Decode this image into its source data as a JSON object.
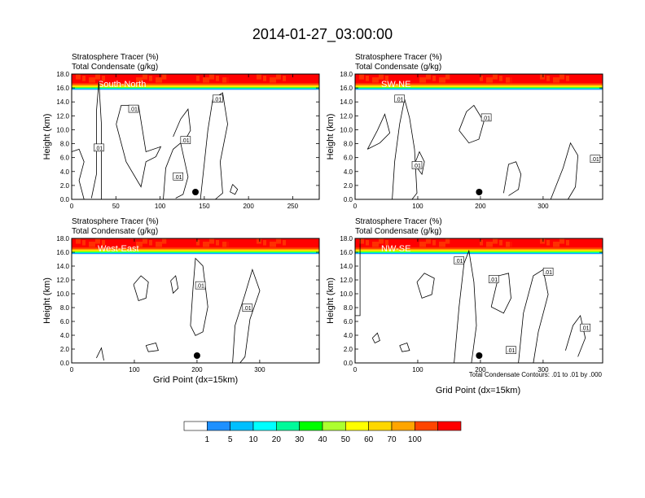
{
  "page": {
    "title": "2014-01-27_03:00:00",
    "contour_note": "Total Condensate Contours: .01 to .01 by .000",
    "point_label": "Grid Point (dx=15km)",
    "ylabel": "Height (km)"
  },
  "colorbar": {
    "levels": [
      "1",
      "5",
      "10",
      "20",
      "30",
      "40",
      "50",
      "60",
      "70",
      "100"
    ],
    "colors": [
      "#ffffff",
      "#1e90ff",
      "#00bfff",
      "#00ffff",
      "#00fa9a",
      "#00ff00",
      "#adff2f",
      "#ffff00",
      "#ffd700",
      "#ffa500",
      "#ff4500",
      "#ff0000"
    ]
  },
  "chart_data": [
    {
      "type": "contour",
      "label": "South-North",
      "subtitle_line1": "Stratosphere Tracer   (%)",
      "subtitle_line2": "Total Condensate   (g/kg)",
      "xlim": [
        0,
        280
      ],
      "ylim": [
        0,
        18
      ],
      "xticks": [
        0,
        50,
        100,
        150,
        200,
        250
      ],
      "yticks": [
        "0.0",
        "2.0",
        "4.0",
        "6.0",
        "8.0",
        "10.0",
        "12.0",
        "14.0",
        "16.0",
        "18.0"
      ],
      "xlabel": "",
      "marker_x": 140,
      "tracer_base_km": 15.8,
      "contour_labels": [
        ".01",
        ".01",
        ".01",
        ".01",
        ".01"
      ]
    },
    {
      "type": "contour",
      "label": "SW-NE",
      "subtitle_line1": "Stratosphere Tracer   (%)",
      "subtitle_line2": "Total Condensate   (g/kg)",
      "xlim": [
        0,
        395
      ],
      "ylim": [
        0,
        18
      ],
      "xticks": [
        0,
        100,
        200,
        300
      ],
      "yticks": [
        "0.0",
        "2.0",
        "4.0",
        "6.0",
        "8.0",
        "10.0",
        "12.0",
        "14.0",
        "16.0",
        "18.0"
      ],
      "xlabel": "",
      "marker_x": 198,
      "tracer_base_km": 15.8,
      "contour_labels": [
        ".01",
        ".01",
        ".01",
        ".01"
      ]
    },
    {
      "type": "contour",
      "label": "West-East",
      "subtitle_line1": "Stratosphere Tracer   (%)",
      "subtitle_line2": "Total Condensate   (g/kg)",
      "xlim": [
        0,
        395
      ],
      "ylim": [
        0,
        18
      ],
      "xticks": [
        0,
        100,
        200,
        300
      ],
      "yticks": [
        "0.0",
        "2.0",
        "4.0",
        "6.0",
        "8.0",
        "10.0",
        "12.0",
        "14.0",
        "16.0",
        "18.0"
      ],
      "xlabel": "Grid Point (dx=15km)",
      "marker_x": 200,
      "tracer_base_km": 15.8,
      "contour_labels": [
        ".01",
        ".01"
      ]
    },
    {
      "type": "contour",
      "label": "NW-SE",
      "subtitle_line1": "Stratosphere Tracer   (%)",
      "subtitle_line2": "Total Condensate   (g/kg)",
      "xlim": [
        0,
        395
      ],
      "ylim": [
        0,
        18
      ],
      "xticks": [
        0,
        100,
        200,
        300
      ],
      "yticks": [
        "0.0",
        "2.0",
        "4.0",
        "6.0",
        "8.0",
        "10.0",
        "12.0",
        "14.0",
        "16.0",
        "18.0"
      ],
      "xlabel": "Grid Point (dx=15km)",
      "marker_x": 198,
      "tracer_base_km": 15.8,
      "contour_labels": [
        ".01",
        ".01",
        ".01",
        ".01",
        ".01"
      ]
    }
  ]
}
